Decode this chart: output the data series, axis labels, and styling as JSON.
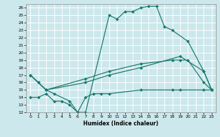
{
  "xlabel": "Humidex (Indice chaleur)",
  "background_color": "#cce8ec",
  "grid_color": "#ffffff",
  "line_color": "#1a7a6e",
  "xlim": [
    -0.5,
    23.5
  ],
  "ylim": [
    12,
    26.5
  ],
  "xticks": [
    0,
    1,
    2,
    3,
    4,
    5,
    6,
    7,
    8,
    9,
    10,
    11,
    12,
    13,
    14,
    15,
    16,
    17,
    18,
    19,
    20,
    21,
    22,
    23
  ],
  "yticks": [
    12,
    13,
    14,
    15,
    16,
    17,
    18,
    19,
    20,
    21,
    22,
    23,
    24,
    25,
    26
  ],
  "c1x": [
    0,
    1,
    2,
    3,
    5,
    6,
    7,
    10,
    11,
    12,
    13,
    14,
    15,
    16,
    17,
    18,
    20,
    22,
    23
  ],
  "c1y": [
    17,
    16,
    15,
    14.5,
    13.5,
    12,
    12,
    25,
    24.5,
    25.5,
    25.5,
    26,
    26.2,
    26.2,
    23.5,
    23,
    21.5,
    17.5,
    15
  ],
  "c2x": [
    0,
    1,
    2,
    7,
    10,
    14,
    18,
    19,
    20,
    22,
    23
  ],
  "c2y": [
    17,
    16,
    15,
    16.5,
    17.5,
    18.5,
    19,
    19,
    19,
    16,
    15
  ],
  "c3x": [
    0,
    2,
    7,
    10,
    14,
    19,
    22,
    23
  ],
  "c3y": [
    17,
    15,
    16,
    17,
    18,
    19.5,
    17.5,
    15
  ],
  "c4x": [
    0,
    1,
    2,
    3,
    4,
    5,
    6,
    7,
    8,
    9,
    10,
    14,
    18,
    19,
    22,
    23
  ],
  "c4y": [
    14,
    14,
    14.5,
    13.5,
    13.5,
    13,
    12,
    14,
    14.5,
    14.5,
    14.5,
    15,
    15,
    15,
    15,
    15
  ]
}
